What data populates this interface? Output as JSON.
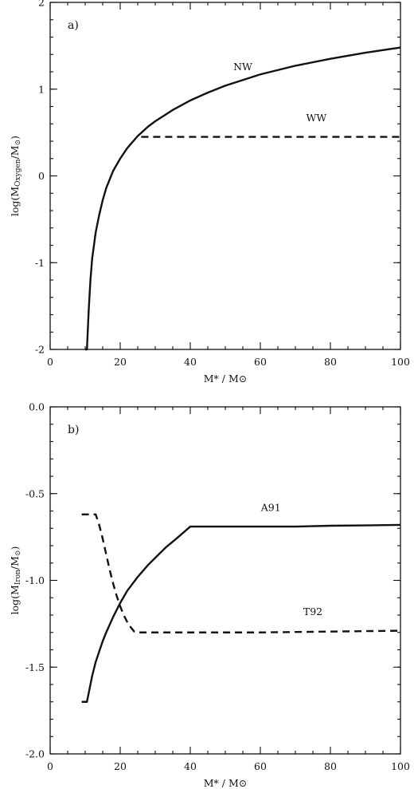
{
  "chart_data": [
    {
      "type": "line",
      "panel_label": "a)",
      "xlabel": "M* / M⊙",
      "ylabel": "log(M_Oxygen / M⊙)",
      "xlim": [
        0,
        100
      ],
      "ylim": [
        -2,
        2
      ],
      "xticks": [
        0,
        20,
        40,
        60,
        80,
        100
      ],
      "yticks": [
        -2,
        -1,
        0,
        1,
        2
      ],
      "xtick_labels": [
        "0",
        "20",
        "40",
        "60",
        "80",
        "100"
      ],
      "ytick_labels": [
        "-2",
        "-1",
        "0",
        "1",
        "2"
      ],
      "series": [
        {
          "name": "NW",
          "style": "solid",
          "x": [
            10,
            10.5,
            11,
            11.5,
            12,
            13,
            14,
            15,
            16,
            18,
            20,
            22,
            25,
            28,
            30,
            35,
            40,
            45,
            50,
            60,
            70,
            80,
            90,
            100
          ],
          "y": [
            -2.0,
            -2.0,
            -1.55,
            -1.2,
            -0.95,
            -0.65,
            -0.45,
            -0.28,
            -0.14,
            0.06,
            0.2,
            0.32,
            0.46,
            0.57,
            0.63,
            0.76,
            0.87,
            0.96,
            1.04,
            1.17,
            1.27,
            1.35,
            1.42,
            1.48
          ]
        },
        {
          "name": "WW",
          "style": "dashed",
          "x": [
            26,
            100
          ],
          "y": [
            0.45,
            0.45
          ]
        }
      ],
      "annotations": [
        {
          "text": "NW",
          "x": 55,
          "y": 1.22
        },
        {
          "text": "WW",
          "x": 76,
          "y": 0.63
        }
      ]
    },
    {
      "type": "line",
      "panel_label": "b)",
      "xlabel": "M* / M⊙",
      "ylabel": "log(M_Iron / M⊙)",
      "xlim": [
        0,
        100
      ],
      "ylim": [
        -2.0,
        0.0
      ],
      "xticks": [
        0,
        20,
        40,
        60,
        80,
        100
      ],
      "yticks": [
        -2.0,
        -1.5,
        -1.0,
        -0.5,
        0.0
      ],
      "xtick_labels": [
        "0",
        "20",
        "40",
        "60",
        "80",
        "100"
      ],
      "ytick_labels": [
        "-2.0",
        "-1.5",
        "-1.0",
        "-0.5",
        "0.0"
      ],
      "series": [
        {
          "name": "A91",
          "style": "solid",
          "x": [
            9,
            10.5,
            11,
            12,
            13,
            14,
            15,
            16,
            18,
            20,
            22,
            25,
            28,
            30,
            33,
            36,
            40,
            50,
            60,
            70,
            80,
            90,
            100
          ],
          "y": [
            -1.7,
            -1.7,
            -1.65,
            -1.55,
            -1.47,
            -1.41,
            -1.35,
            -1.3,
            -1.21,
            -1.13,
            -1.06,
            -0.98,
            -0.91,
            -0.87,
            -0.81,
            -0.76,
            -0.69,
            -0.69,
            -0.69,
            -0.69,
            -0.685,
            -0.683,
            -0.68
          ]
        },
        {
          "name": "T92",
          "style": "dashed",
          "x": [
            9,
            13,
            14,
            15,
            16,
            17,
            18,
            19,
            20,
            21,
            22,
            23,
            24,
            25,
            30,
            40,
            60,
            80,
            100
          ],
          "y": [
            -0.62,
            -0.62,
            -0.68,
            -0.76,
            -0.85,
            -0.94,
            -1.02,
            -1.09,
            -1.15,
            -1.2,
            -1.24,
            -1.27,
            -1.295,
            -1.3,
            -1.3,
            -1.3,
            -1.3,
            -1.295,
            -1.29
          ]
        }
      ],
      "annotations": [
        {
          "text": "A91",
          "x": 63,
          "y": -0.6
        },
        {
          "text": "T92",
          "x": 75,
          "y": -1.2
        }
      ]
    }
  ]
}
